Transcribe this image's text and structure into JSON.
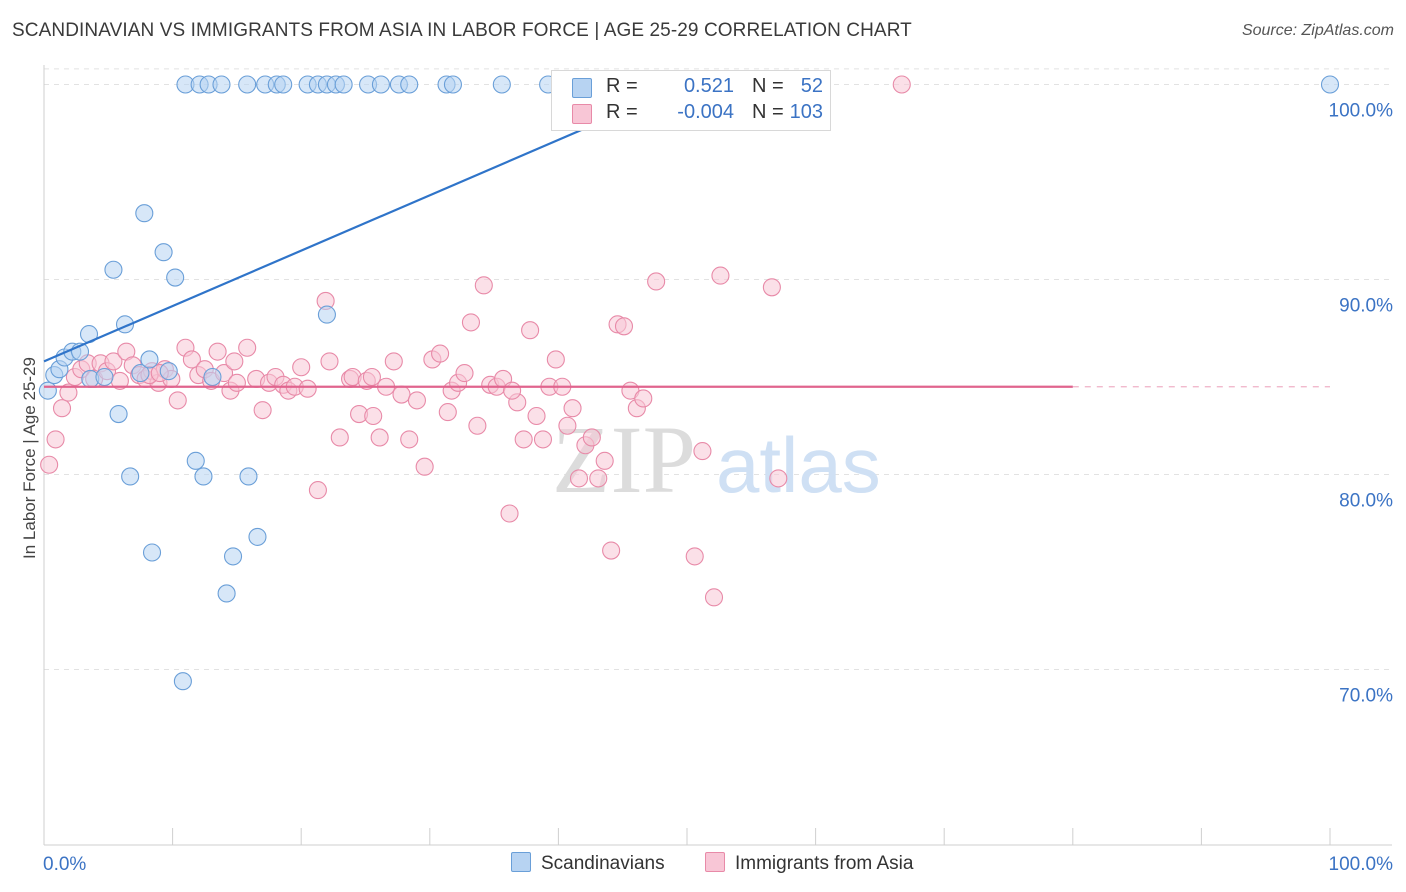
{
  "title": "SCANDINAVIAN VS IMMIGRANTS FROM ASIA IN LABOR FORCE | AGE 25-29 CORRELATION CHART",
  "source": "Source: ZipAtlas.com",
  "watermark": {
    "zip": "ZIP",
    "atlas": "atlas"
  },
  "legend": {
    "r_label": "R =",
    "n_label": "N =",
    "rows": [
      {
        "r": "0.521",
        "n": "52"
      },
      {
        "r": "-0.004",
        "n": "103"
      }
    ]
  },
  "bottom_legend": [
    "Scandinavians",
    "Immigrants from Asia"
  ],
  "colors": {
    "blue_fill": "#b7d3f2",
    "blue_stroke": "#6a9fd8",
    "blue_line": "#2f74c9",
    "pink_fill": "#f8c6d6",
    "pink_stroke": "#e88aa8",
    "pink_line": "#e0648e",
    "tick_label": "#3b73c4"
  },
  "chart_data": {
    "type": "scatter",
    "title": "SCANDINAVIAN VS IMMIGRANTS FROM ASIA IN LABOR FORCE | AGE 25-29 CORRELATION CHART",
    "xlabel": "",
    "ylabel": "In Labor Force | Age 25-29",
    "xlim": [
      0,
      100
    ],
    "ylim": [
      61,
      101
    ],
    "x_tick_labels": [
      "0.0%",
      "100.0%"
    ],
    "y_ticks": [
      70,
      80,
      90,
      100
    ],
    "y_tick_labels": [
      "70.0%",
      "80.0%",
      "90.0%",
      "100.0%"
    ],
    "grid": true,
    "legend_position": "top-center",
    "series": [
      {
        "name": "Scandinavians",
        "R": 0.521,
        "N": 52,
        "trend": {
          "x": [
            0,
            50
          ],
          "y": [
            85.8,
            100.0
          ]
        },
        "points": [
          [
            0.3,
            84.3
          ],
          [
            0.8,
            85.1
          ],
          [
            1.2,
            85.4
          ],
          [
            1.6,
            86.0
          ],
          [
            2.2,
            86.3
          ],
          [
            2.8,
            86.3
          ],
          [
            3.5,
            87.2
          ],
          [
            3.6,
            84.9
          ],
          [
            4.7,
            85.0
          ],
          [
            5.4,
            90.5
          ],
          [
            5.8,
            83.1
          ],
          [
            6.3,
            87.7
          ],
          [
            6.7,
            79.9
          ],
          [
            7.5,
            85.2
          ],
          [
            7.8,
            93.4
          ],
          [
            8.2,
            85.9
          ],
          [
            8.4,
            76.0
          ],
          [
            9.3,
            91.4
          ],
          [
            9.7,
            85.3
          ],
          [
            10.2,
            90.1
          ],
          [
            10.8,
            69.4
          ],
          [
            11.0,
            100.0
          ],
          [
            11.8,
            80.7
          ],
          [
            12.1,
            100.0
          ],
          [
            12.4,
            79.9
          ],
          [
            12.8,
            100.0
          ],
          [
            13.1,
            85.0
          ],
          [
            13.8,
            100.0
          ],
          [
            14.2,
            73.9
          ],
          [
            14.7,
            75.8
          ],
          [
            15.8,
            100.0
          ],
          [
            15.9,
            79.9
          ],
          [
            16.6,
            76.8
          ],
          [
            17.2,
            100.0
          ],
          [
            18.1,
            100.0
          ],
          [
            18.6,
            100.0
          ],
          [
            20.5,
            100.0
          ],
          [
            21.3,
            100.0
          ],
          [
            22.0,
            100.0
          ],
          [
            22.0,
            88.2
          ],
          [
            22.7,
            100.0
          ],
          [
            23.3,
            100.0
          ],
          [
            25.2,
            100.0
          ],
          [
            26.2,
            100.0
          ],
          [
            27.6,
            100.0
          ],
          [
            28.4,
            100.0
          ],
          [
            31.3,
            100.0
          ],
          [
            31.8,
            100.0
          ],
          [
            35.6,
            100.0
          ],
          [
            39.2,
            100.0
          ],
          [
            42.0,
            100.0
          ],
          [
            100.0,
            100.0
          ]
        ]
      },
      {
        "name": "Immigrants from Asia",
        "R": -0.004,
        "N": 103,
        "trend": {
          "x": [
            0,
            80
          ],
          "y": [
            84.5,
            84.5
          ]
        },
        "points": [
          [
            0.4,
            80.5
          ],
          [
            0.9,
            81.8
          ],
          [
            1.4,
            83.4
          ],
          [
            1.9,
            84.2
          ],
          [
            2.4,
            85.0
          ],
          [
            2.9,
            85.4
          ],
          [
            3.4,
            85.7
          ],
          [
            3.9,
            84.9
          ],
          [
            4.4,
            85.7
          ],
          [
            4.9,
            85.3
          ],
          [
            5.4,
            85.8
          ],
          [
            5.9,
            84.8
          ],
          [
            6.4,
            86.3
          ],
          [
            6.9,
            85.6
          ],
          [
            7.4,
            85.1
          ],
          [
            7.9,
            84.9
          ],
          [
            8.4,
            85.3
          ],
          [
            8.9,
            84.7
          ],
          [
            9.4,
            85.4
          ],
          [
            9.9,
            84.9
          ],
          [
            10.4,
            83.8
          ],
          [
            11.0,
            86.5
          ],
          [
            11.5,
            85.9
          ],
          [
            12.0,
            85.1
          ],
          [
            12.5,
            85.4
          ],
          [
            13.0,
            84.8
          ],
          [
            13.5,
            86.3
          ],
          [
            14.0,
            85.2
          ],
          [
            14.5,
            84.3
          ],
          [
            15.0,
            84.7
          ],
          [
            15.8,
            86.5
          ],
          [
            16.5,
            84.9
          ],
          [
            17.0,
            83.3
          ],
          [
            17.5,
            84.7
          ],
          [
            18.0,
            85.0
          ],
          [
            18.6,
            84.6
          ],
          [
            19.0,
            84.3
          ],
          [
            19.5,
            84.5
          ],
          [
            20.0,
            85.5
          ],
          [
            20.5,
            84.4
          ],
          [
            21.3,
            79.2
          ],
          [
            21.9,
            88.9
          ],
          [
            22.2,
            85.8
          ],
          [
            23.0,
            81.9
          ],
          [
            23.8,
            84.9
          ],
          [
            24.0,
            85.0
          ],
          [
            24.5,
            83.1
          ],
          [
            25.1,
            84.8
          ],
          [
            25.6,
            83.0
          ],
          [
            26.1,
            81.9
          ],
          [
            26.6,
            84.5
          ],
          [
            27.2,
            85.8
          ],
          [
            27.8,
            84.1
          ],
          [
            28.4,
            81.8
          ],
          [
            29.0,
            83.8
          ],
          [
            29.6,
            80.4
          ],
          [
            30.2,
            85.9
          ],
          [
            30.8,
            86.2
          ],
          [
            31.4,
            83.2
          ],
          [
            31.7,
            84.3
          ],
          [
            32.2,
            84.7
          ],
          [
            32.7,
            85.2
          ],
          [
            33.2,
            87.8
          ],
          [
            33.7,
            82.5
          ],
          [
            34.2,
            89.7
          ],
          [
            34.7,
            84.6
          ],
          [
            35.2,
            84.5
          ],
          [
            35.7,
            84.9
          ],
          [
            36.2,
            78.0
          ],
          [
            36.8,
            83.7
          ],
          [
            37.3,
            81.8
          ],
          [
            37.8,
            87.4
          ],
          [
            38.3,
            83.0
          ],
          [
            38.8,
            81.8
          ],
          [
            39.3,
            84.5
          ],
          [
            39.8,
            85.9
          ],
          [
            40.3,
            84.5
          ],
          [
            40.7,
            82.5
          ],
          [
            41.1,
            83.4
          ],
          [
            41.6,
            79.8
          ],
          [
            42.1,
            81.5
          ],
          [
            42.6,
            81.9
          ],
          [
            43.1,
            79.8
          ],
          [
            43.6,
            80.7
          ],
          [
            44.1,
            76.1
          ],
          [
            44.6,
            87.7
          ],
          [
            45.1,
            87.6
          ],
          [
            45.6,
            84.3
          ],
          [
            46.1,
            83.4
          ],
          [
            46.6,
            83.9
          ],
          [
            47.6,
            89.9
          ],
          [
            50.6,
            75.8
          ],
          [
            51.2,
            81.2
          ],
          [
            52.1,
            73.7
          ],
          [
            52.6,
            90.2
          ],
          [
            56.6,
            89.6
          ],
          [
            57.1,
            79.8
          ],
          [
            66.7,
            100.0
          ],
          [
            8.2,
            85.1
          ],
          [
            14.8,
            85.8
          ],
          [
            25.5,
            85.0
          ],
          [
            36.4,
            84.3
          ],
          [
            9.0,
            85.2
          ]
        ]
      }
    ]
  }
}
